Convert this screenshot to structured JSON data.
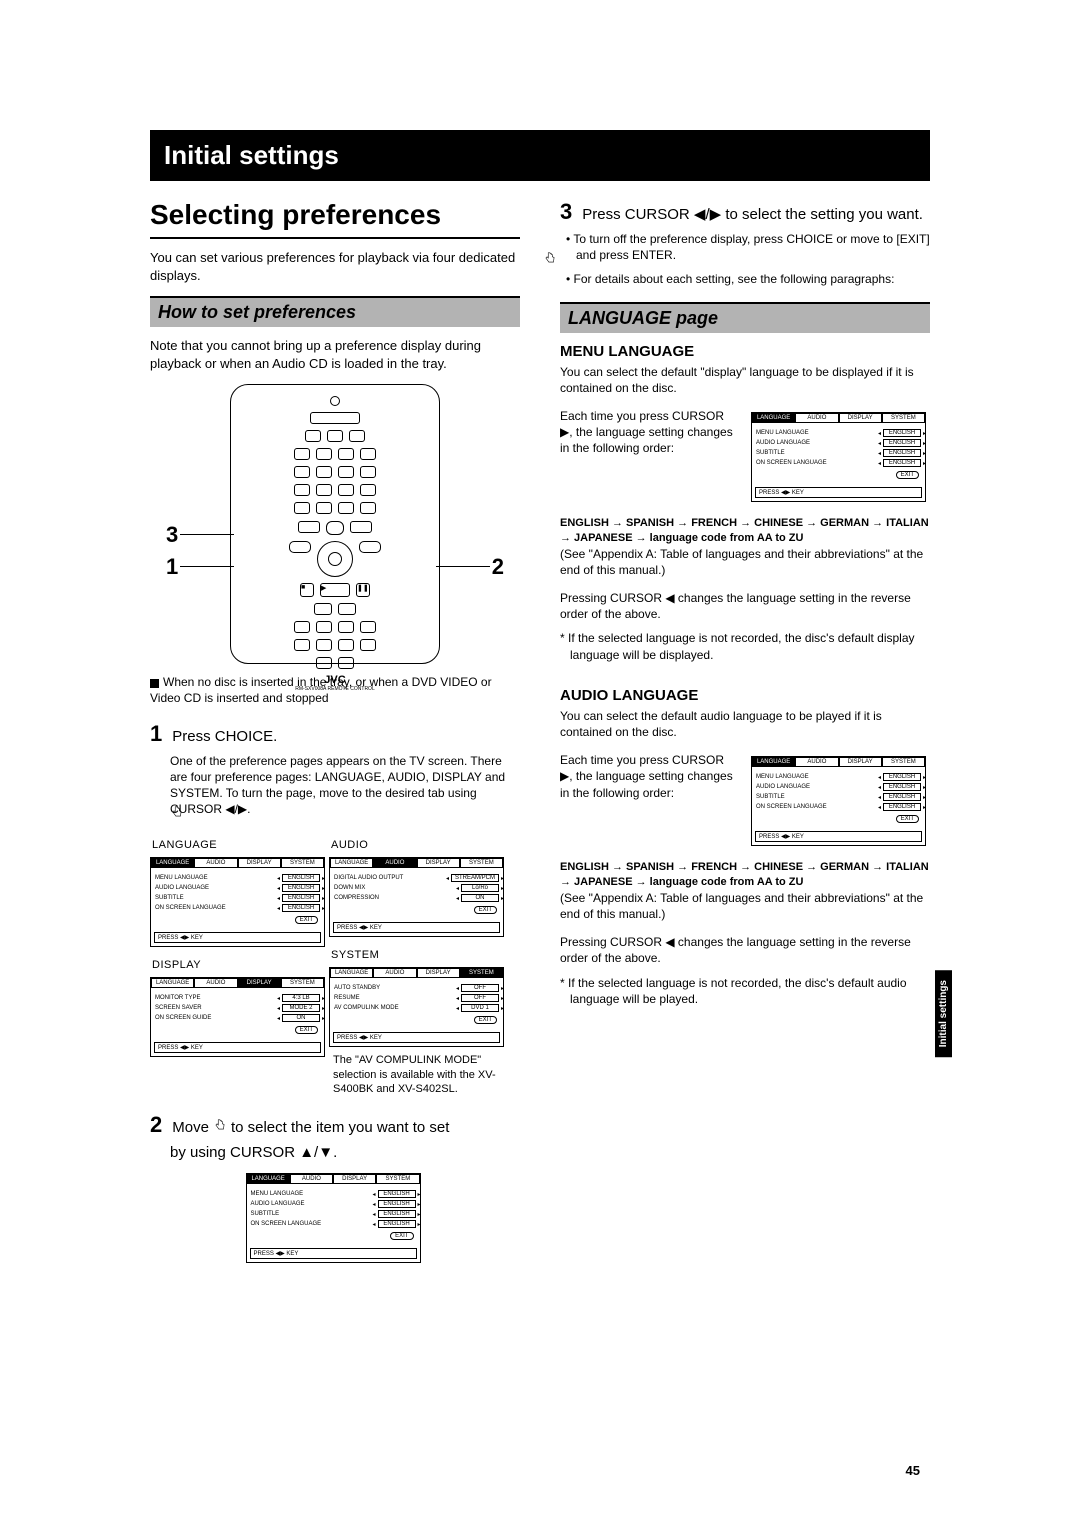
{
  "banner": "Initial settings",
  "section_title": "Selecting preferences",
  "intro": "You can set various preferences for playback via four dedicated displays.",
  "howto_title": "How to set preferences",
  "howto_note": "Note that you cannot bring up a preference display during playback or when an Audio CD is loaded in the tray.",
  "remote_callouts": {
    "one": "1",
    "two": "2",
    "three": "3"
  },
  "remote_brand": "JVC",
  "remote_model": "RM-SXV008A REMOTE CONTROL",
  "tray_note": "When no disc is inserted in the tray, or when a DVD VIDEO or Video CD is inserted and stopped",
  "step1_label": "Press CHOICE.",
  "step1_body": "One of the preference pages appears on the TV screen. There are four preference pages: LANGUAGE, AUDIO, DISPLAY and SYSTEM. To turn the page, move       to the desired tab using CURSOR ◀/▶.",
  "menus": {
    "language": {
      "title": "LANGUAGE",
      "tabs": [
        "LANGUAGE",
        "AUDIO",
        "DISPLAY",
        "SYSTEM"
      ],
      "active": 0,
      "rows": [
        {
          "label": "MENU LANGUAGE",
          "val": "ENGLISH"
        },
        {
          "label": "AUDIO LANGUAGE",
          "val": "ENGLISH"
        },
        {
          "label": "SUBTITLE",
          "val": "ENGLISH"
        },
        {
          "label": "ON SCREEN LANGUAGE",
          "val": "ENGLISH"
        }
      ]
    },
    "audio": {
      "title": "AUDIO",
      "tabs": [
        "LANGUAGE",
        "AUDIO",
        "DISPLAY",
        "SYSTEM"
      ],
      "active": 1,
      "rows": [
        {
          "label": "DIGITAL AUDIO OUTPUT",
          "val": "STREAM/PCM"
        },
        {
          "label": "DOWN MIX",
          "val": "Lo/Ro"
        },
        {
          "label": "COMPRESSION",
          "val": "ON"
        }
      ]
    },
    "display": {
      "title": "DISPLAY",
      "tabs": [
        "LANGUAGE",
        "AUDIO",
        "DISPLAY",
        "SYSTEM"
      ],
      "active": 2,
      "rows": [
        {
          "label": "MONITOR TYPE",
          "val": "4:3 LB"
        },
        {
          "label": "SCREEN SAVER",
          "val": "MODE 2"
        },
        {
          "label": "ON SCREEN GUIDE",
          "val": "ON"
        }
      ]
    },
    "system": {
      "title": "SYSTEM",
      "tabs": [
        "LANGUAGE",
        "AUDIO",
        "DISPLAY",
        "SYSTEM"
      ],
      "active": 3,
      "rows": [
        {
          "label": "AUTO STANDBY",
          "val": "OFF"
        },
        {
          "label": "RESUME",
          "val": "OFF"
        },
        {
          "label": "AV COMPULINK MODE",
          "val": "DVD 1"
        }
      ]
    },
    "exit": "EXIT",
    "foot": "PRESS ◀▶ KEY"
  },
  "system_caption": "The \"AV COMPULINK MODE\" selection is available with the XV-S400BK and XV-S402SL.",
  "step2_label_a": "Move",
  "step2_label_b": "to select the item you want to set",
  "step2_sub": "by using CURSOR ▲/▼.",
  "step3_label": "Press CURSOR ◀/▶ to select the setting you want.",
  "step3_b1": "To turn off the preference display, press CHOICE or move       to [EXIT] and press ENTER.",
  "step3_b2": "For details about each setting, see the following paragraphs:",
  "lang_page_title": "LANGUAGE page",
  "menu_lang_head": "MENU LANGUAGE",
  "menu_lang_body": "You can select the default \"display\" language to be displayed if it is contained on the disc.",
  "menu_lang_each": "Each time you press CURSOR ▶, the language setting changes in the following order:",
  "lang_seq": "ENGLISH → SPANISH → FRENCH → CHINESE → GERMAN → ITALIAN → JAPANESE → language code from AA to ZU",
  "lang_appendix": "(See \"Appendix A: Table of languages and their abbreviations\" at the end of this manual.)",
  "lang_reverse": "Pressing CURSOR ◀ changes the language setting in the reverse order of the above.",
  "lang_note": "* If the selected language is not recorded, the disc's default display language will be displayed.",
  "audio_lang_head": "AUDIO LANGUAGE",
  "audio_lang_body": "You can select the default audio language to be played if it is contained on the disc.",
  "audio_lang_each": "Each time you press CURSOR ▶, the language setting changes in the following order:",
  "audio_note": "* If the selected language is not recorded, the disc's default audio language will be played.",
  "page_num": "45",
  "side_tab": "Initial settings",
  "colors": {
    "banner_bg": "#000000",
    "banner_fg": "#ffffff",
    "gray": "#b3b3b3"
  }
}
